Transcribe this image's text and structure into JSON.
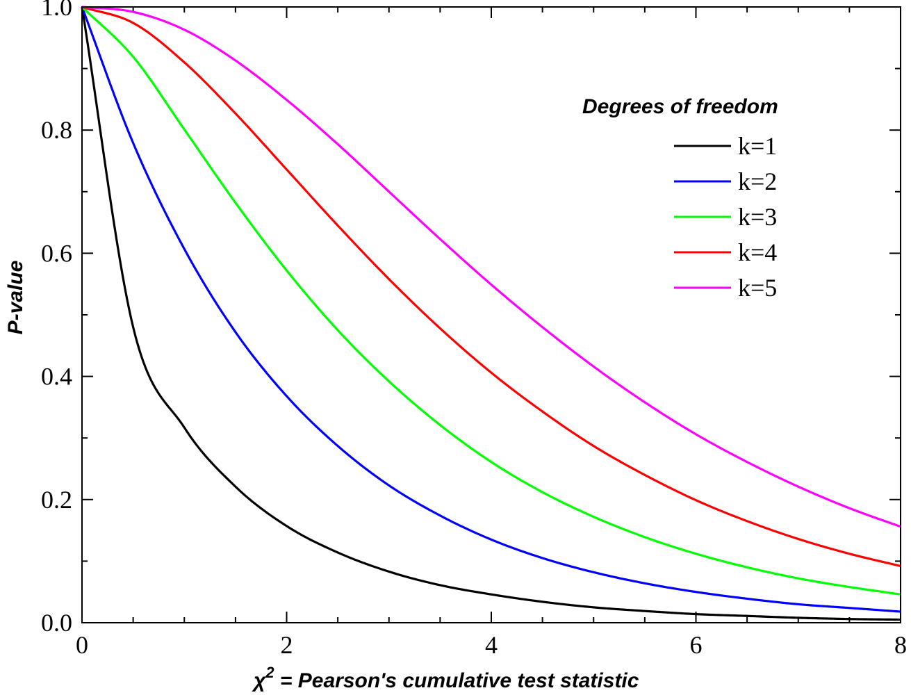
{
  "chart_data": {
    "type": "line",
    "xlabel_prefix": "χ",
    "xlabel_sup": "2",
    "xlabel_rest": " = Pearson's cumulative test statistic",
    "ylabel": "P-value",
    "xlim": [
      0,
      8
    ],
    "ylim": [
      0,
      1
    ],
    "x_ticks": [
      0,
      2,
      4,
      6,
      8
    ],
    "x_tick_labels": [
      "0",
      "2",
      "4",
      "6",
      "8"
    ],
    "y_ticks": [
      0,
      0.2,
      0.4,
      0.6,
      0.8,
      1.0
    ],
    "y_tick_labels": [
      "0.0",
      "0.2",
      "0.4",
      "0.6",
      "0.8",
      "1.0"
    ],
    "grid": false,
    "legend": {
      "title": "Degrees of freedom",
      "placement": "top-right"
    },
    "x": [
      0,
      0.5,
      1,
      1.5,
      2,
      2.5,
      3,
      3.5,
      4,
      4.5,
      5,
      5.5,
      6,
      6.5,
      7,
      7.5,
      8
    ],
    "series": [
      {
        "name": "k=1",
        "color": "#000000",
        "values": [
          1.0,
          0.48,
          0.317,
          0.221,
          0.157,
          0.114,
          0.083,
          0.061,
          0.046,
          0.034,
          0.025,
          0.019,
          0.014,
          0.011,
          0.008,
          0.006,
          0.005
        ]
      },
      {
        "name": "k=2",
        "color": "#0000ff",
        "values": [
          1.0,
          0.779,
          0.607,
          0.472,
          0.368,
          0.287,
          0.223,
          0.174,
          0.135,
          0.105,
          0.082,
          0.064,
          0.05,
          0.039,
          0.03,
          0.024,
          0.018
        ]
      },
      {
        "name": "k=3",
        "color": "#00ff00",
        "values": [
          1.0,
          0.919,
          0.801,
          0.682,
          0.572,
          0.475,
          0.392,
          0.321,
          0.261,
          0.212,
          0.172,
          0.139,
          0.112,
          0.09,
          0.072,
          0.058,
          0.046
        ]
      },
      {
        "name": "k=4",
        "color": "#ff0000",
        "values": [
          1.0,
          0.974,
          0.91,
          0.827,
          0.736,
          0.645,
          0.558,
          0.478,
          0.406,
          0.343,
          0.287,
          0.24,
          0.199,
          0.165,
          0.136,
          0.112,
          0.092
        ]
      },
      {
        "name": "k=5",
        "color": "#ff00ff",
        "values": [
          1.0,
          0.992,
          0.963,
          0.913,
          0.849,
          0.777,
          0.7,
          0.623,
          0.549,
          0.48,
          0.416,
          0.358,
          0.306,
          0.261,
          0.221,
          0.186,
          0.156
        ]
      }
    ]
  }
}
